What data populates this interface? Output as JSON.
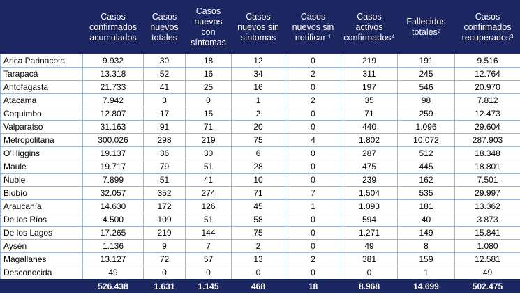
{
  "table": {
    "header": [
      "",
      "Casos confirmados acumulados",
      "Casos nuevos totales",
      "Casos nuevos con síntomas",
      "Casos nuevos sin síntomas",
      "Casos nuevos sin notificar ¹",
      "Casos activos confirmados⁴",
      "Fallecidos totales²",
      "Casos confirmados recuperados³"
    ],
    "rows": [
      [
        "Arica Parinacota",
        "9.932",
        "30",
        "18",
        "12",
        "0",
        "219",
        "191",
        "9.516"
      ],
      [
        "Tarapacá",
        "13.318",
        "52",
        "16",
        "34",
        "2",
        "311",
        "245",
        "12.764"
      ],
      [
        "Antofagasta",
        "21.733",
        "41",
        "25",
        "16",
        "0",
        "197",
        "546",
        "20.970"
      ],
      [
        "Atacama",
        "7.942",
        "3",
        "0",
        "1",
        "2",
        "35",
        "98",
        "7.812"
      ],
      [
        "Coquimbo",
        "12.807",
        "17",
        "15",
        "2",
        "0",
        "71",
        "259",
        "12.473"
      ],
      [
        "Valparaíso",
        "31.163",
        "91",
        "71",
        "20",
        "0",
        "440",
        "1.096",
        "29.604"
      ],
      [
        "Metropolitana",
        "300.026",
        "298",
        "219",
        "75",
        "4",
        "1.802",
        "10.072",
        "287.903"
      ],
      [
        "O’Higgins",
        "19.137",
        "36",
        "30",
        "6",
        "0",
        "287",
        "512",
        "18.348"
      ],
      [
        "Maule",
        "19.717",
        "79",
        "51",
        "28",
        "0",
        "475",
        "445",
        "18.801"
      ],
      [
        "Ñuble",
        "7.899",
        "51",
        "41",
        "10",
        "0",
        "239",
        "162",
        "7.501"
      ],
      [
        "Biobío",
        "32.057",
        "352",
        "274",
        "71",
        "7",
        "1.504",
        "535",
        "29.997"
      ],
      [
        "Araucanía",
        "14.630",
        "172",
        "126",
        "45",
        "1",
        "1.093",
        "181",
        "13.362"
      ],
      [
        "De los Ríos",
        "4.500",
        "109",
        "51",
        "58",
        "0",
        "594",
        "40",
        "3.873"
      ],
      [
        "De los Lagos",
        "17.265",
        "219",
        "144",
        "75",
        "0",
        "1.271",
        "149",
        "15.841"
      ],
      [
        "Aysén",
        "1.136",
        "9",
        "7",
        "2",
        "0",
        "49",
        "8",
        "1.080"
      ],
      [
        "Magallanes",
        "13.127",
        "72",
        "57",
        "13",
        "2",
        "381",
        "159",
        "12.581"
      ],
      [
        "Desconocida",
        "49",
        "0",
        "0",
        "0",
        "0",
        "0",
        "1",
        "49"
      ]
    ],
    "total": [
      "",
      "526.438",
      "1.631",
      "1.145",
      "468",
      "18",
      "8.968",
      "14.699",
      "502.475"
    ]
  }
}
